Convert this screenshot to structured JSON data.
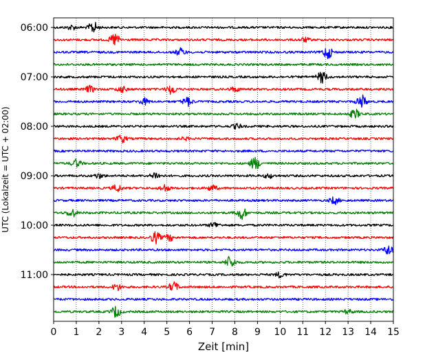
{
  "chart_data": {
    "type": "line",
    "title": "",
    "xlabel": "Zeit  [min]",
    "ylabel": "UTC (Lokalzeit = UTC + 02:00)",
    "xlim": [
      0,
      15
    ],
    "x_ticks": [
      0,
      1,
      2,
      3,
      4,
      5,
      6,
      7,
      8,
      9,
      10,
      11,
      12,
      13,
      14,
      15
    ],
    "x_grid": "dotted vertical lines at each minute",
    "y_tick_labels": [
      "06:00",
      "07:00",
      "08:00",
      "09:00",
      "10:00",
      "11:00"
    ],
    "trace_interval_min": 15,
    "start_time": "06:00",
    "colors_cycle": [
      "#000000",
      "#ff0000",
      "#0000ff",
      "#008000"
    ],
    "traces": [
      {
        "start": "06:00",
        "color": "#000000",
        "bursts": [
          [
            0.8,
            0.35
          ],
          [
            1.75,
            0.9
          ]
        ]
      },
      {
        "start": "06:15",
        "color": "#ff0000",
        "bursts": [
          [
            2.7,
            1.0
          ],
          [
            11.1,
            0.3
          ]
        ]
      },
      {
        "start": "06:30",
        "color": "#0000ff",
        "bursts": [
          [
            5.6,
            0.6
          ],
          [
            12.1,
            1.0
          ]
        ]
      },
      {
        "start": "06:45",
        "color": "#008000",
        "bursts": []
      },
      {
        "start": "07:00",
        "color": "#000000",
        "bursts": [
          [
            11.85,
            0.9
          ]
        ]
      },
      {
        "start": "07:15",
        "color": "#ff0000",
        "bursts": [
          [
            1.6,
            0.5
          ],
          [
            3.0,
            0.45
          ],
          [
            5.2,
            0.75
          ],
          [
            8.0,
            0.35
          ]
        ]
      },
      {
        "start": "07:30",
        "color": "#0000ff",
        "bursts": [
          [
            4.0,
            0.5
          ],
          [
            5.9,
            0.7
          ],
          [
            13.6,
            1.0
          ]
        ]
      },
      {
        "start": "07:45",
        "color": "#008000",
        "bursts": [
          [
            13.3,
            0.7
          ]
        ]
      },
      {
        "start": "08:00",
        "color": "#000000",
        "bursts": [
          [
            8.1,
            0.35
          ]
        ]
      },
      {
        "start": "08:15",
        "color": "#ff0000",
        "bursts": [
          [
            3.0,
            0.6
          ],
          [
            5.8,
            0.2
          ]
        ]
      },
      {
        "start": "08:30",
        "color": "#0000ff",
        "bursts": []
      },
      {
        "start": "08:45",
        "color": "#008000",
        "bursts": [
          [
            1.0,
            0.6
          ],
          [
            8.9,
            1.0
          ]
        ]
      },
      {
        "start": "09:00",
        "color": "#000000",
        "bursts": [
          [
            2.0,
            0.35
          ],
          [
            4.5,
            0.55
          ],
          [
            9.5,
            0.35
          ]
        ]
      },
      {
        "start": "09:15",
        "color": "#ff0000",
        "bursts": [
          [
            2.8,
            0.55
          ],
          [
            4.9,
            0.55
          ],
          [
            7.0,
            0.45
          ]
        ]
      },
      {
        "start": "09:30",
        "color": "#0000ff",
        "bursts": [
          [
            12.4,
            0.55
          ]
        ]
      },
      {
        "start": "09:45",
        "color": "#008000",
        "bursts": [
          [
            0.8,
            0.65
          ],
          [
            8.3,
            1.0
          ]
        ]
      },
      {
        "start": "10:00",
        "color": "#000000",
        "bursts": [
          [
            7.1,
            0.45
          ]
        ]
      },
      {
        "start": "10:15",
        "color": "#ff0000",
        "bursts": [
          [
            4.5,
            0.9
          ],
          [
            5.1,
            0.5
          ]
        ]
      },
      {
        "start": "10:30",
        "color": "#0000ff",
        "bursts": [
          [
            14.8,
            0.8
          ]
        ]
      },
      {
        "start": "10:45",
        "color": "#008000",
        "bursts": [
          [
            7.8,
            0.95
          ]
        ]
      },
      {
        "start": "11:00",
        "color": "#000000",
        "bursts": [
          [
            10.0,
            0.4
          ]
        ]
      },
      {
        "start": "11:15",
        "color": "#ff0000",
        "bursts": [
          [
            2.8,
            0.5
          ],
          [
            5.3,
            0.75
          ]
        ]
      },
      {
        "start": "11:30",
        "color": "#0000ff",
        "bursts": []
      },
      {
        "start": "11:45",
        "color": "#008000",
        "bursts": [
          [
            2.75,
            0.85
          ],
          [
            13.0,
            0.3
          ]
        ]
      }
    ]
  }
}
